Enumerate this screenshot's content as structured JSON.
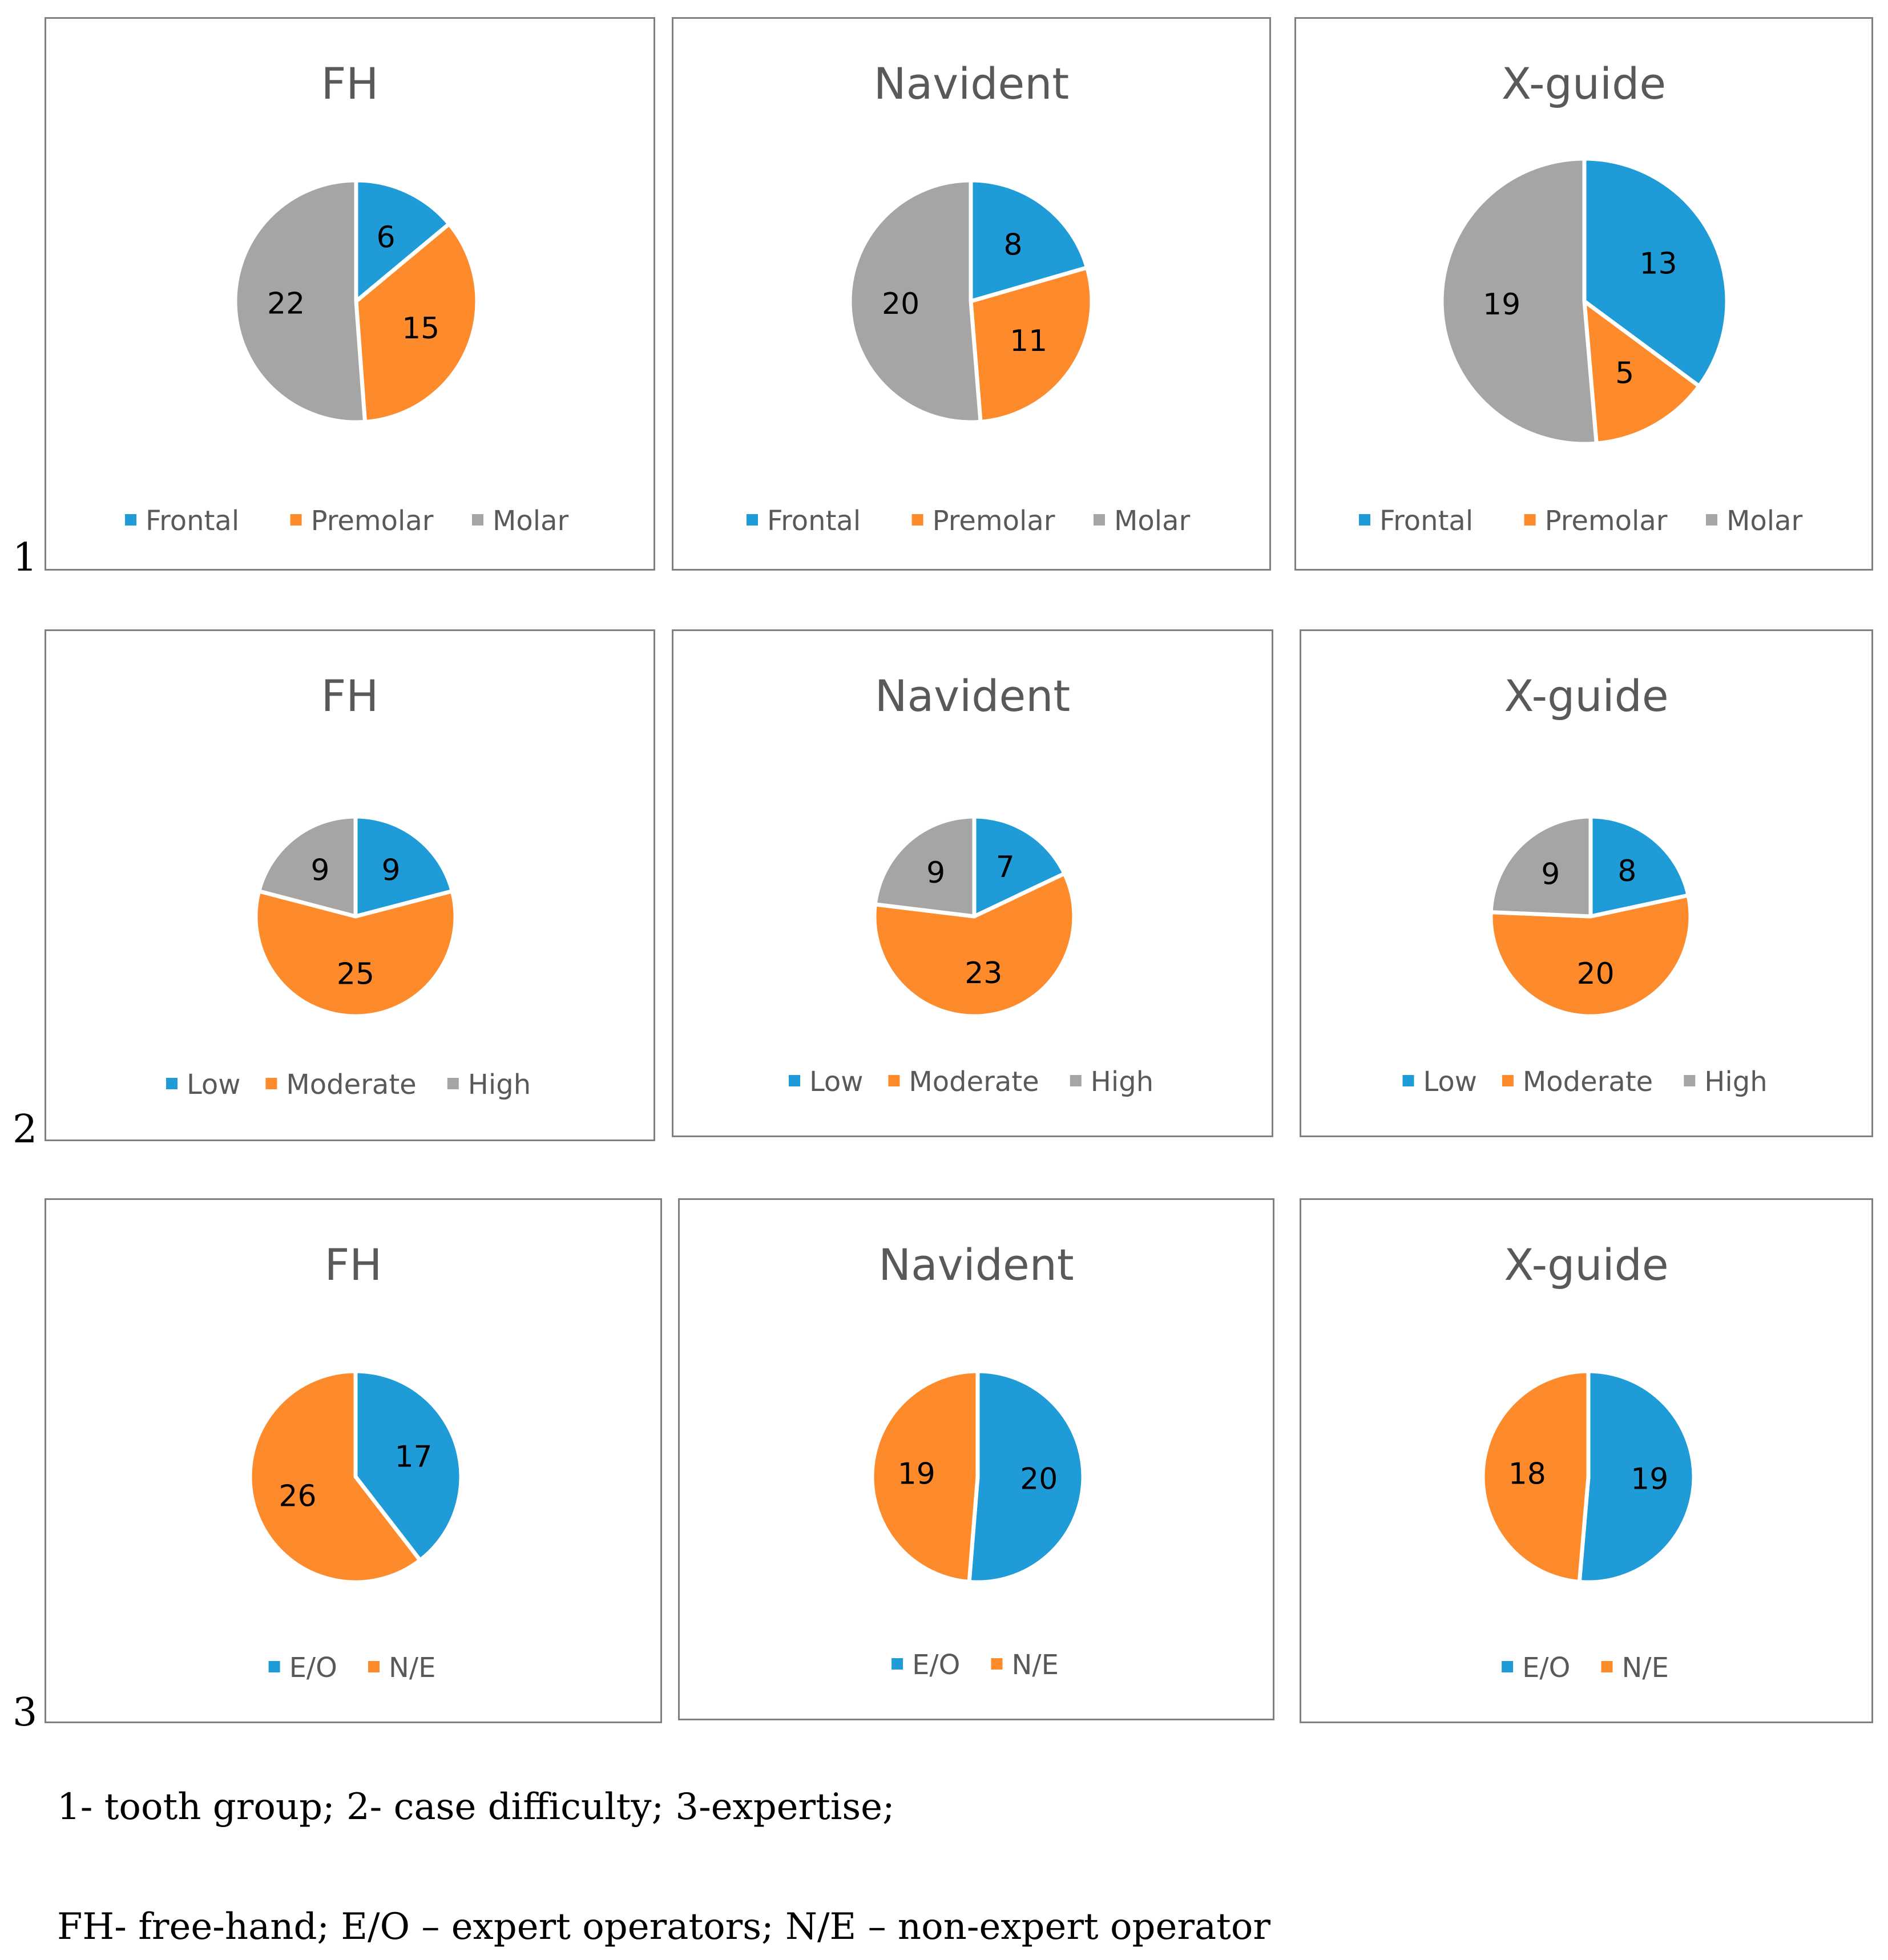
{
  "colors": {
    "blue": "#1f9bd7",
    "orange": "#fd8a2b",
    "gray": "#a5a5a5"
  },
  "rows": [
    {
      "row_label": "1"
    },
    {
      "row_label": "2"
    },
    {
      "row_label": "3"
    }
  ],
  "chart_data": [
    {
      "type": "pie",
      "title": "FH",
      "categories": [
        "Frontal",
        "Premolar",
        "Molar"
      ],
      "values": [
        6,
        15,
        22
      ],
      "colors": [
        "#1f9bd7",
        "#fd8a2b",
        "#a5a5a5"
      ]
    },
    {
      "type": "pie",
      "title": "Navident",
      "categories": [
        "Frontal",
        "Premolar",
        "Molar"
      ],
      "values": [
        8,
        11,
        20
      ],
      "colors": [
        "#1f9bd7",
        "#fd8a2b",
        "#a5a5a5"
      ]
    },
    {
      "type": "pie",
      "title": "X-guide",
      "categories": [
        "Frontal",
        "Premolar",
        "Molar"
      ],
      "values": [
        13,
        5,
        19
      ],
      "colors": [
        "#1f9bd7",
        "#fd8a2b",
        "#a5a5a5"
      ]
    },
    {
      "type": "pie",
      "title": "FH",
      "categories": [
        "Low",
        "Moderate",
        "High"
      ],
      "values": [
        9,
        25,
        9
      ],
      "colors": [
        "#1f9bd7",
        "#fd8a2b",
        "#a5a5a5"
      ]
    },
    {
      "type": "pie",
      "title": "Navident",
      "categories": [
        "Low",
        "Moderate",
        "High"
      ],
      "values": [
        7,
        23,
        9
      ],
      "colors": [
        "#1f9bd7",
        "#fd8a2b",
        "#a5a5a5"
      ]
    },
    {
      "type": "pie",
      "title": "X-guide",
      "categories": [
        "Low",
        "Moderate",
        "High"
      ],
      "values": [
        8,
        20,
        9
      ],
      "colors": [
        "#1f9bd7",
        "#fd8a2b",
        "#a5a5a5"
      ]
    },
    {
      "type": "pie",
      "title": "FH",
      "categories": [
        "E/O",
        "N/E"
      ],
      "values": [
        17,
        26
      ],
      "colors": [
        "#1f9bd7",
        "#fd8a2b"
      ]
    },
    {
      "type": "pie",
      "title": "Navident",
      "categories": [
        "E/O",
        "N/E"
      ],
      "values": [
        20,
        19
      ],
      "colors": [
        "#1f9bd7",
        "#fd8a2b"
      ]
    },
    {
      "type": "pie",
      "title": "X-guide",
      "categories": [
        "E/O",
        "N/E"
      ],
      "values": [
        19,
        18
      ],
      "colors": [
        "#1f9bd7",
        "#fd8a2b"
      ]
    }
  ],
  "notes": {
    "line1": "1- tooth group; 2- case difficulty; 3-expertise;",
    "line2": "FH- free-hand; E/O – expert operators; N/E – non-expert operator"
  }
}
